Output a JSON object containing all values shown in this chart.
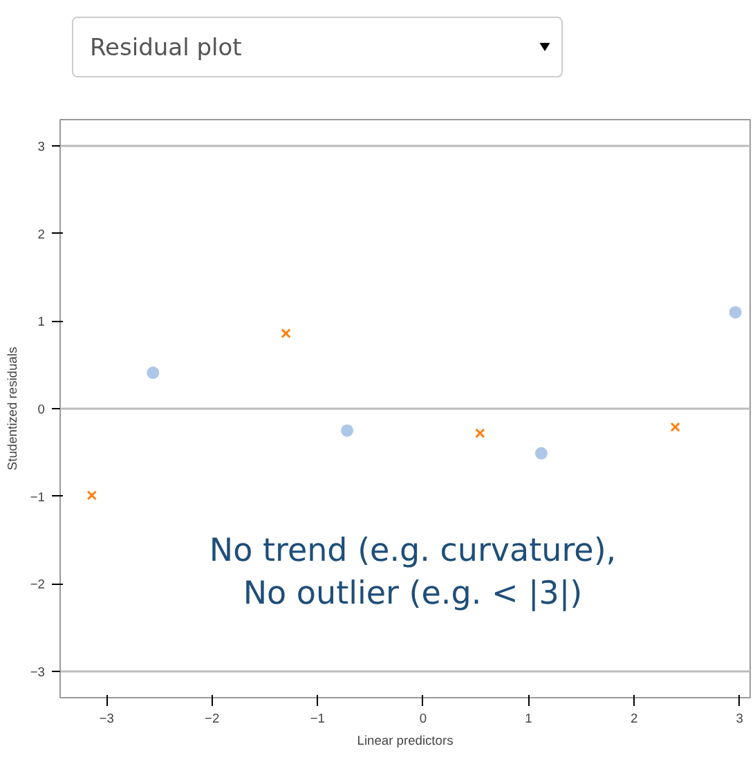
{
  "chart_data": {
    "type": "scatter",
    "title": "Residual plot",
    "xlabel": "Linear predictors",
    "ylabel": "Studentized residuals",
    "xlim": [
      -3.44,
      3.1
    ],
    "ylim": [
      -3.3,
      3.3
    ],
    "xticks": [
      -3,
      -2,
      -1,
      0,
      1,
      2,
      3
    ],
    "yticks": [
      -3,
      -2,
      -1,
      0,
      1,
      2,
      3
    ],
    "grid": false,
    "series": [
      {
        "color": "#aec7e8",
        "marker": "circle",
        "x": [
          -2.56,
          -0.72,
          1.12,
          2.96
        ],
        "values": [
          0.41,
          -0.25,
          -0.51,
          1.1
        ]
      },
      {
        "color": "#ff7f0e",
        "marker": "cross",
        "x": [
          -3.14,
          -1.3,
          0.54,
          2.39
        ],
        "values": [
          -0.99,
          0.86,
          -0.28,
          -0.21
        ]
      }
    ],
    "ref_lines": [
      {
        "axis": "y",
        "value": 3,
        "color": "#bbbbbb"
      },
      {
        "axis": "y",
        "value": 0,
        "color": "#bbbbbb"
      },
      {
        "axis": "y",
        "value": -3,
        "color": "#bbbbbb"
      }
    ],
    "annotations": [
      "No trend (e.g. curvature),\nNo outlier (e.g. < |3|)"
    ]
  }
}
